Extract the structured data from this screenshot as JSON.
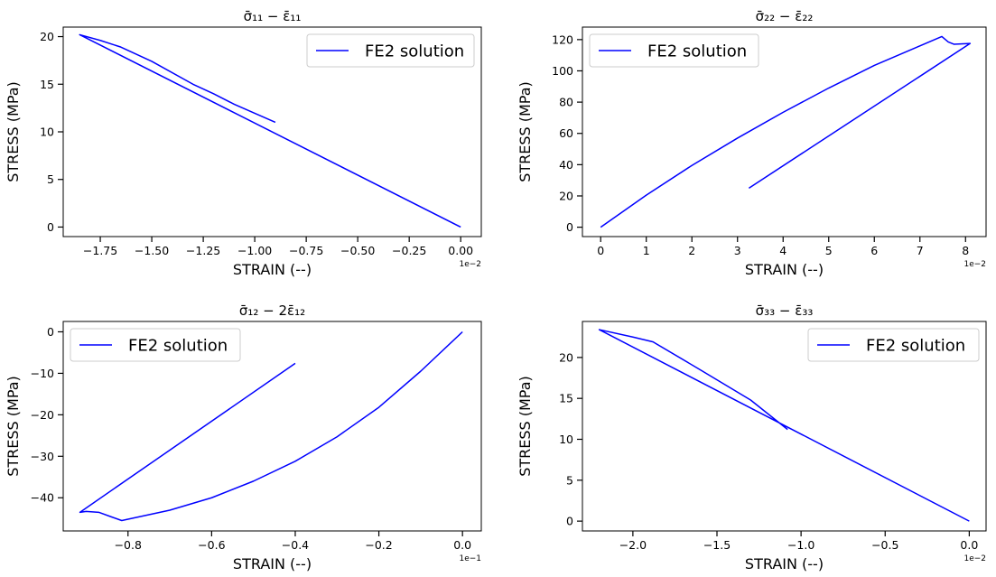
{
  "chart_data": [
    {
      "type": "line",
      "title": "σ̄₁₁ − ε̄₁₁",
      "xlabel": "STRAIN (--)",
      "ylabel": "STRESS (MPa)",
      "x_offset_text": "1e−2",
      "xlim": [
        -1.93,
        0.1
      ],
      "ylim": [
        -1,
        21
      ],
      "xticks": [
        -1.75,
        -1.5,
        -1.25,
        -1.0,
        -0.75,
        -0.5,
        -0.25,
        0.0
      ],
      "xtick_labels": [
        "−1.75",
        "−1.50",
        "−1.25",
        "−1.00",
        "−0.75",
        "−0.50",
        "−0.25",
        "0.00"
      ],
      "yticks": [
        0,
        5,
        10,
        15,
        20
      ],
      "ytick_labels": [
        "0",
        "5",
        "10",
        "15",
        "20"
      ],
      "legend_position": "upper right",
      "series": [
        {
          "name": "FE2 solution",
          "color": "#0000ff",
          "x": [
            0.0,
            -1.85,
            -1.75,
            -1.65,
            -1.5,
            -1.3,
            -1.2,
            -1.1,
            -0.9
          ],
          "y": [
            0.0,
            20.2,
            19.6,
            18.9,
            17.4,
            15.0,
            14.0,
            12.9,
            11.0
          ]
        }
      ]
    },
    {
      "type": "line",
      "title": "σ̄₂₂ − ε̄₂₂",
      "xlabel": "STRAIN (--)",
      "ylabel": "STRESS (MPa)",
      "x_offset_text": "1e−2",
      "xlim": [
        -0.4,
        8.45
      ],
      "ylim": [
        -6,
        128
      ],
      "xticks": [
        0,
        1,
        2,
        3,
        4,
        5,
        6,
        7,
        8
      ],
      "xtick_labels": [
        "0",
        "1",
        "2",
        "3",
        "4",
        "5",
        "6",
        "7",
        "8"
      ],
      "yticks": [
        0,
        20,
        40,
        60,
        80,
        100,
        120
      ],
      "ytick_labels": [
        "0",
        "20",
        "40",
        "60",
        "80",
        "100",
        "120"
      ],
      "legend_position": "upper left",
      "series": [
        {
          "name": "FE2 solution",
          "color": "#0000ff",
          "x": [
            0.0,
            1.0,
            2.0,
            3.0,
            4.0,
            5.0,
            6.0,
            7.0,
            7.48,
            7.62,
            7.75,
            8.1,
            3.25
          ],
          "y": [
            0.0,
            20.5,
            39.5,
            57.0,
            73.5,
            89.0,
            103.5,
            116.0,
            122.0,
            118.5,
            117.0,
            117.5,
            25.0
          ]
        }
      ]
    },
    {
      "type": "line",
      "title": "σ̄₁₂ − 2ε̄₁₂",
      "xlabel": "STRAIN (--)",
      "ylabel": "STRESS (MPa)",
      "x_offset_text": "1e−1",
      "xlim": [
        -0.955,
        0.045
      ],
      "ylim": [
        -48,
        2.5
      ],
      "xticks": [
        -0.8,
        -0.6,
        -0.4,
        -0.2,
        0.0
      ],
      "xtick_labels": [
        "−0.8",
        "−0.6",
        "−0.4",
        "−0.2",
        "0.0"
      ],
      "yticks": [
        0,
        -10,
        -20,
        -30,
        -40
      ],
      "ytick_labels": [
        "0",
        "−10",
        "−20",
        "−30",
        "−40"
      ],
      "legend_position": "upper left",
      "series": [
        {
          "name": "FE2 solution",
          "color": "#0000ff",
          "x": [
            0.0,
            -0.1,
            -0.2,
            -0.3,
            -0.4,
            -0.5,
            -0.6,
            -0.7,
            -0.815,
            -0.84,
            -0.87,
            -0.9,
            -0.915,
            -0.4
          ],
          "y": [
            0.0,
            -9.5,
            -18.2,
            -25.3,
            -31.2,
            -36.0,
            -40.0,
            -43.0,
            -45.5,
            -44.6,
            -43.5,
            -43.3,
            -43.5,
            -7.6
          ]
        }
      ]
    },
    {
      "type": "line",
      "title": "σ̄₃₃ − ε̄₃₃",
      "xlabel": "STRAIN (--)",
      "ylabel": "STRESS (MPa)",
      "x_offset_text": "1e−2",
      "xlim": [
        -2.3,
        0.1
      ],
      "ylim": [
        -1.2,
        24.4
      ],
      "xticks": [
        -2.0,
        -1.5,
        -1.0,
        -0.5,
        0.0
      ],
      "xtick_labels": [
        "−2.0",
        "−1.5",
        "−1.0",
        "−0.5",
        "0.0"
      ],
      "yticks": [
        0,
        5,
        10,
        15,
        20
      ],
      "ytick_labels": [
        "0",
        "5",
        "10",
        "15",
        "20"
      ],
      "legend_position": "upper right",
      "series": [
        {
          "name": "FE2 solution",
          "color": "#0000ff",
          "x": [
            0.0,
            -2.2,
            -2.0,
            -1.88,
            -1.6,
            -1.3,
            -1.08
          ],
          "y": [
            0.0,
            23.4,
            22.5,
            21.9,
            18.5,
            14.8,
            11.2
          ]
        }
      ]
    }
  ]
}
